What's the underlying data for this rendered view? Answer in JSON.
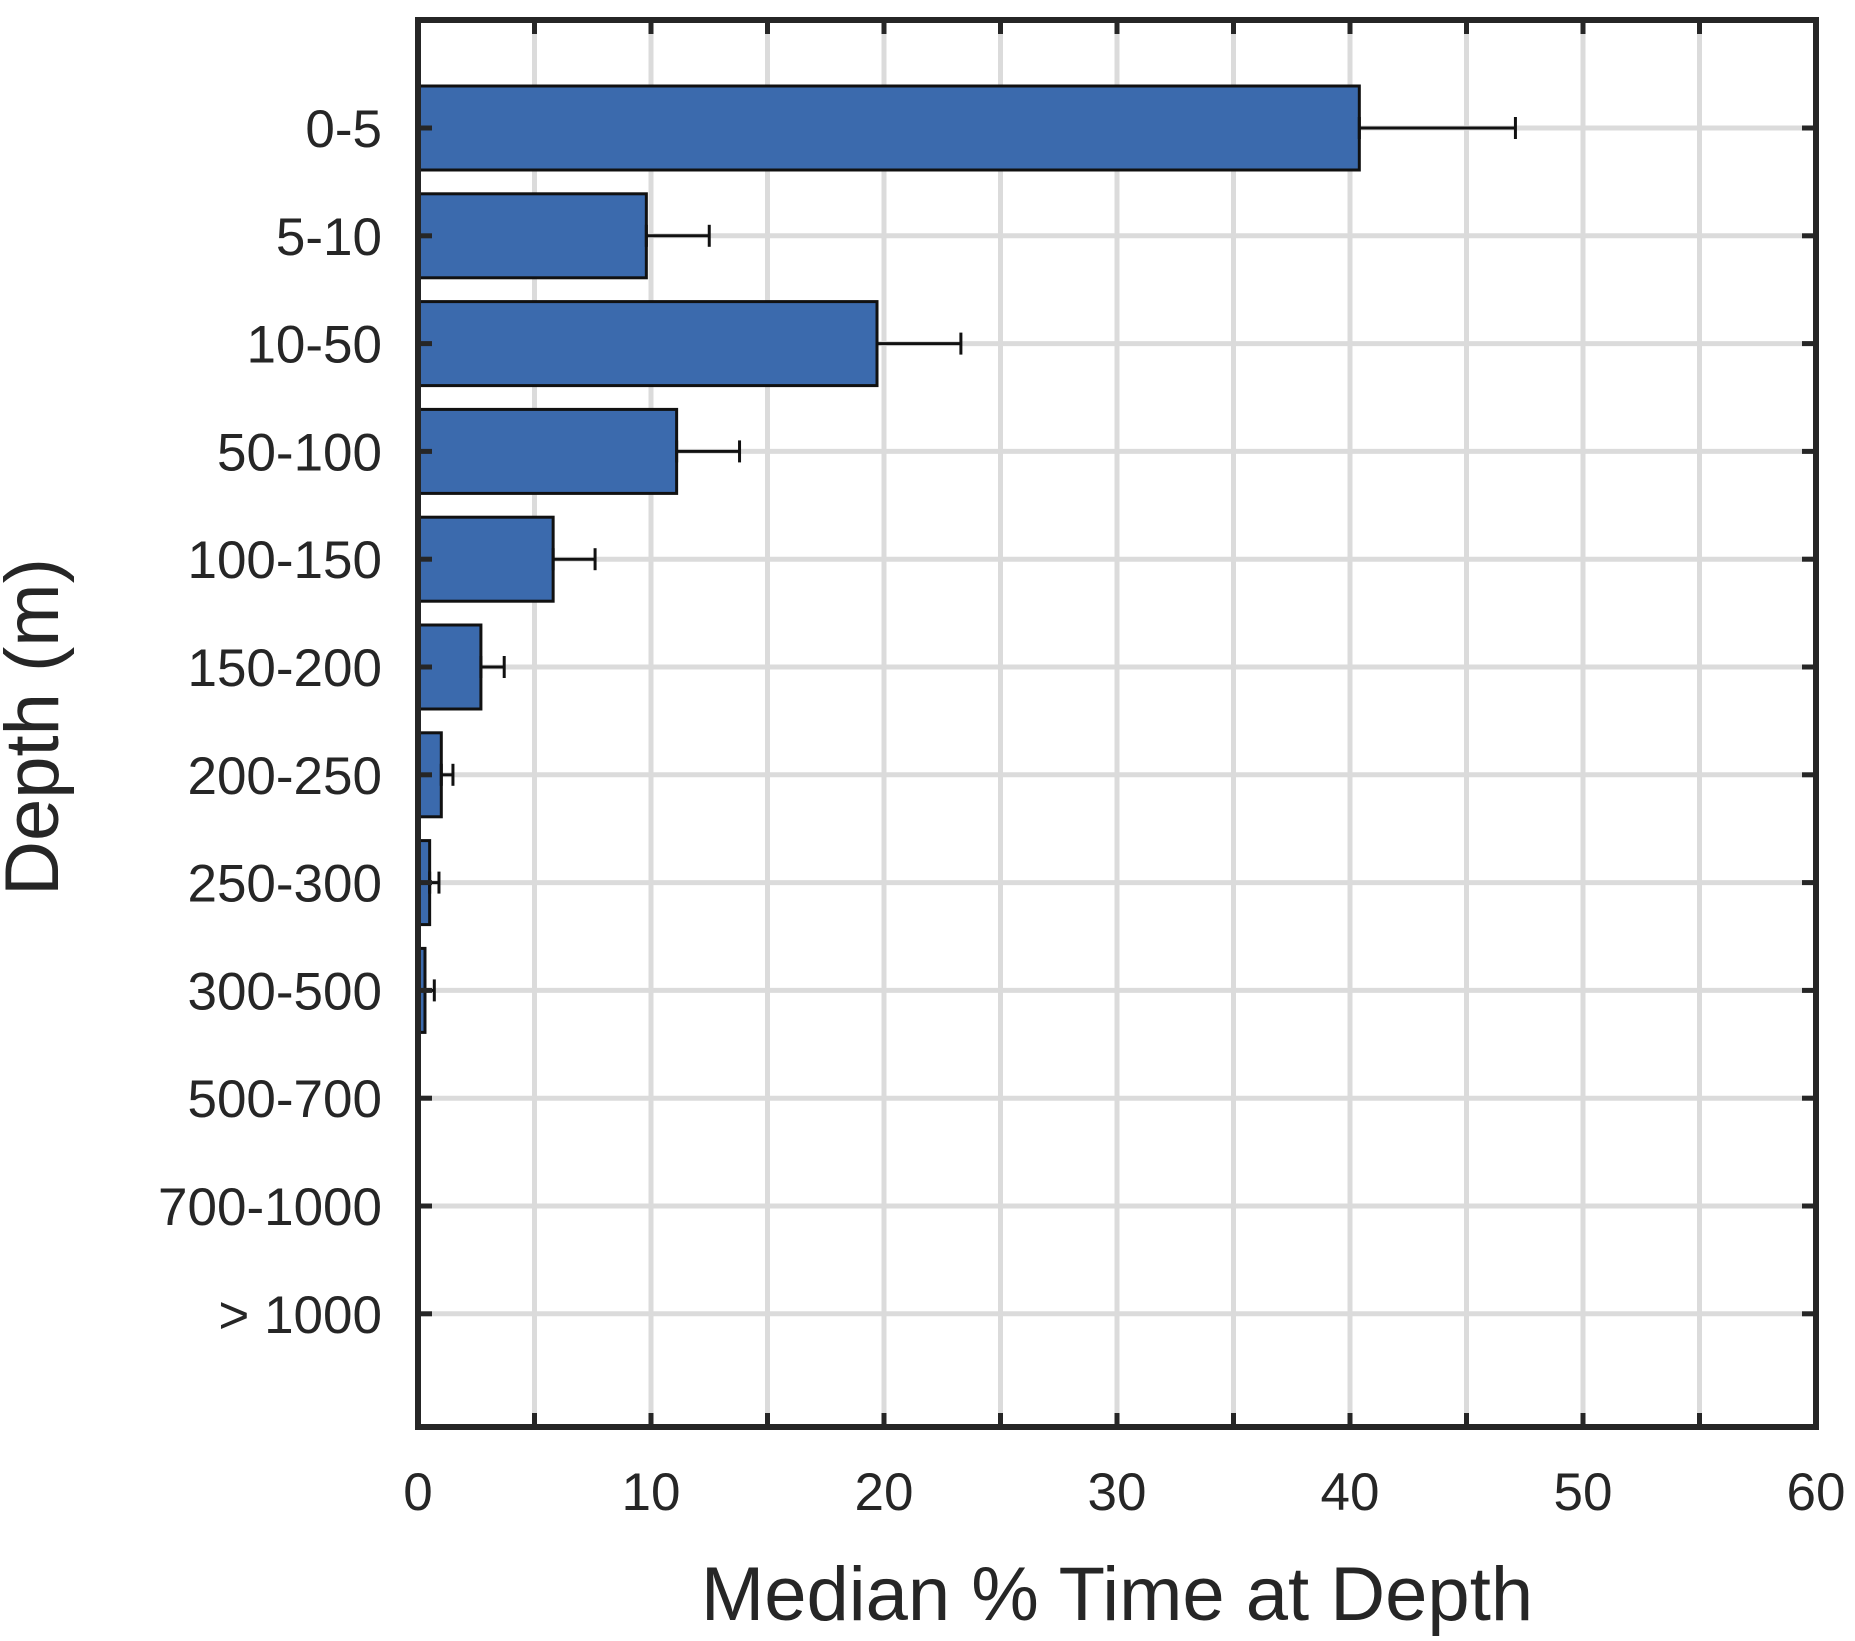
{
  "chart_data": {
    "type": "bar",
    "orientation": "horizontal",
    "title": "",
    "xlabel": "Median % Time at Depth",
    "ylabel": "Depth (m)",
    "xlim": [
      0,
      60
    ],
    "xticks": [
      0,
      10,
      20,
      30,
      40,
      50,
      60
    ],
    "categories": [
      "0-5",
      "5-10",
      "10-50",
      "50-100",
      "100-150",
      "150-200",
      "200-250",
      "250-300",
      "300-500",
      "500-700",
      "700-1000",
      "> 1000"
    ],
    "values": [
      40.4,
      9.8,
      19.7,
      11.1,
      5.8,
      2.7,
      1.0,
      0.5,
      0.3,
      0,
      0,
      0
    ],
    "error_upper": [
      47.1,
      12.5,
      23.3,
      13.8,
      7.6,
      3.7,
      1.5,
      0.9,
      0.7,
      null,
      null,
      null
    ],
    "grid": true,
    "bar_color": "#3b6aad",
    "grid_color": "#dbdbdb",
    "axis_color": "#262626"
  }
}
